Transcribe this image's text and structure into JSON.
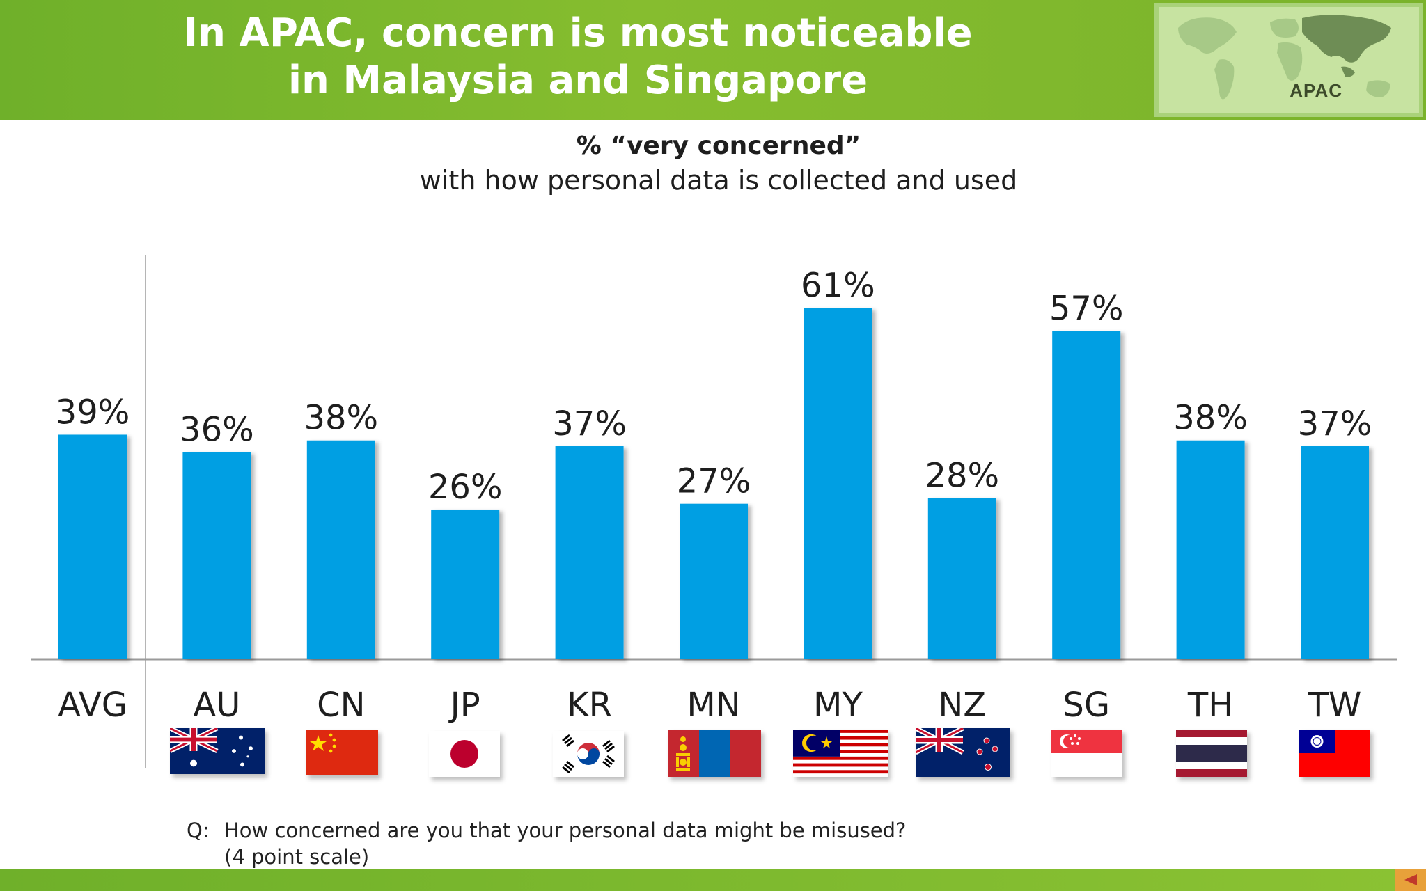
{
  "header": {
    "title_line1": "In APAC, concern is most noticeable",
    "title_line2": "in Malaysia and Singapore",
    "region_label": "APAC",
    "map_icon": "world-map-icon"
  },
  "subtitle": {
    "line1": "% “very concerned”",
    "line2": "with how personal data is collected and used"
  },
  "footnote": {
    "q_label": "Q:",
    "line1": "How concerned are you that your personal data might be misused?",
    "line2": "(4 point scale)"
  },
  "colors": {
    "bar": "#009fe3",
    "header": "#7ab32b",
    "text": "#1e1e1e"
  },
  "chart_data": {
    "type": "bar",
    "title": "% “very concerned”",
    "subtitle": "with how personal data is collected and used",
    "categories": [
      "AVG",
      "AU",
      "CN",
      "JP",
      "KR",
      "MN",
      "MY",
      "NZ",
      "SG",
      "TH",
      "TW"
    ],
    "values": [
      39,
      36,
      38,
      26,
      37,
      27,
      61,
      28,
      57,
      38,
      37
    ],
    "value_labels": [
      "39%",
      "36%",
      "38%",
      "26%",
      "37%",
      "27%",
      "61%",
      "28%",
      "57%",
      "38%",
      "37%"
    ],
    "unit": "%",
    "ylim": [
      0,
      70
    ],
    "grid": false,
    "legend": "none",
    "flags": [
      "",
      "australia-flag-icon",
      "china-flag-icon",
      "japan-flag-icon",
      "south-korea-flag-icon",
      "mongolia-flag-icon",
      "malaysia-flag-icon",
      "new-zealand-flag-icon",
      "singapore-flag-icon",
      "thailand-flag-icon",
      "taiwan-flag-icon"
    ]
  }
}
